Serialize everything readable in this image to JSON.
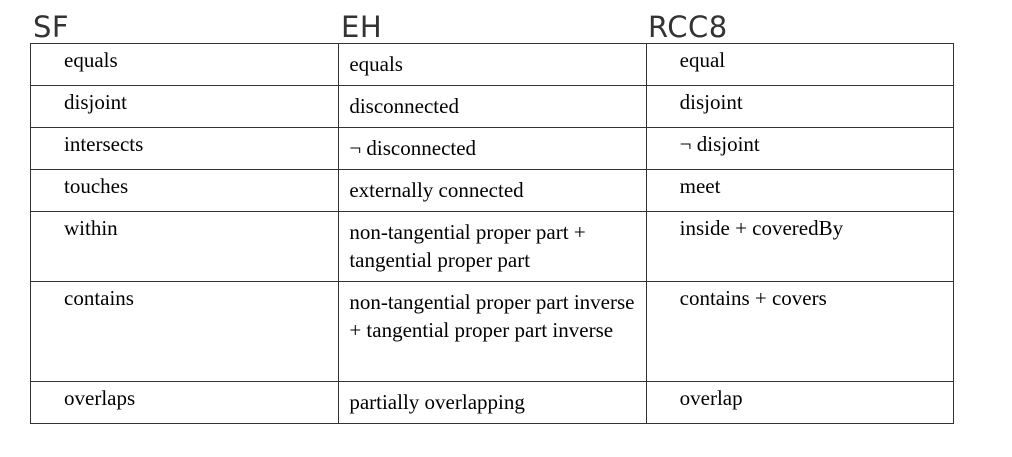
{
  "headers": [
    "SF",
    "EH",
    "RCC8"
  ],
  "rows": [
    [
      "equals",
      "equals",
      "equal"
    ],
    [
      "disjoint",
      "disconnected",
      "disjoint"
    ],
    [
      "intersects",
      "¬ disconnected",
      "¬ disjoint"
    ],
    [
      "touches",
      "externally connected",
      "meet"
    ],
    [
      "within",
      "non-tangential proper part + tangential proper part",
      "inside + coveredBy"
    ],
    [
      "contains",
      "non-tangential proper part inverse + tangential proper part inverse",
      "contains + covers"
    ],
    [
      "overlaps",
      "partially overlapping",
      "overlap"
    ]
  ]
}
